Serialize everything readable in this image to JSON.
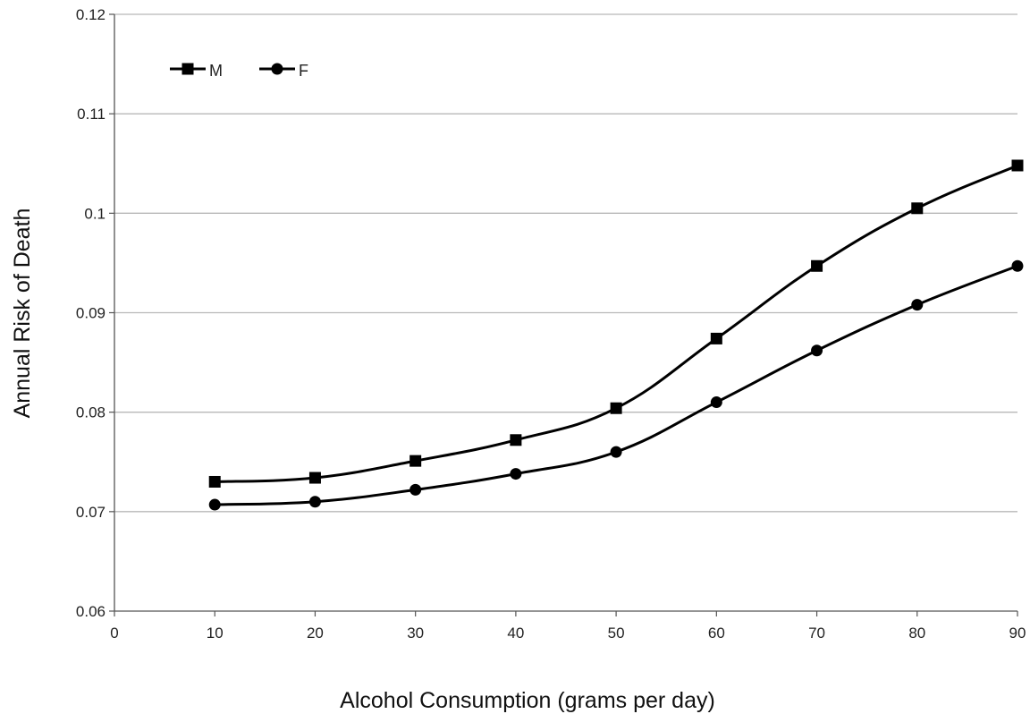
{
  "chart_data": {
    "type": "line",
    "title": "",
    "xlabel": "Alcohol Consumption (grams per day)",
    "ylabel": "Annual Risk of Death",
    "xlim": [
      0,
      90
    ],
    "ylim": [
      0.06,
      0.12
    ],
    "x_ticks": [
      "0",
      "10",
      "20",
      "30",
      "40",
      "50",
      "60",
      "70",
      "80",
      "90"
    ],
    "x_tick_values": [
      0,
      10,
      20,
      30,
      40,
      50,
      60,
      70,
      80,
      90
    ],
    "y_ticks": [
      "0.06",
      "0.07",
      "0.08",
      "0.09",
      "0.1",
      "0.11",
      "0.12"
    ],
    "y_tick_values": [
      0.06,
      0.07,
      0.08,
      0.09,
      0.1,
      0.11,
      0.12
    ],
    "grid": "horizontal",
    "legend_position": "top-left",
    "smooth": true,
    "x": [
      10,
      20,
      30,
      40,
      50,
      60,
      70,
      80,
      90
    ],
    "series": [
      {
        "name": "M",
        "marker": "square",
        "color": "#000000",
        "values": [
          0.073,
          0.0734,
          0.0751,
          0.0772,
          0.0804,
          0.0874,
          0.0947,
          0.1005,
          0.1048
        ]
      },
      {
        "name": "F",
        "marker": "circle",
        "color": "#000000",
        "values": [
          0.0707,
          0.071,
          0.0722,
          0.0738,
          0.076,
          0.081,
          0.0862,
          0.0908,
          0.0947
        ]
      }
    ]
  }
}
